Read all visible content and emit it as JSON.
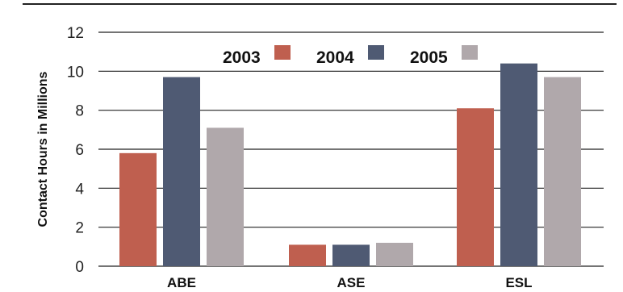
{
  "chart_data": {
    "type": "bar",
    "title": "",
    "xlabel": "",
    "ylabel": "Contact Hours in Millions",
    "categories": [
      "ABE",
      "ASE",
      "ESL"
    ],
    "series": [
      {
        "name": "2003",
        "color": "#bf5f4f",
        "values": [
          5.8,
          1.1,
          8.1
        ]
      },
      {
        "name": "2004",
        "color": "#4f5a73",
        "values": [
          9.7,
          1.1,
          10.4
        ]
      },
      {
        "name": "2005",
        "color": "#b0a8ab",
        "values": [
          7.1,
          1.2,
          9.7
        ]
      }
    ],
    "ylim": [
      0,
      12
    ],
    "yticks": [
      "0",
      "2",
      "4",
      "6",
      "8",
      "10",
      "12"
    ],
    "grid": true,
    "legend_position": "top-center"
  }
}
